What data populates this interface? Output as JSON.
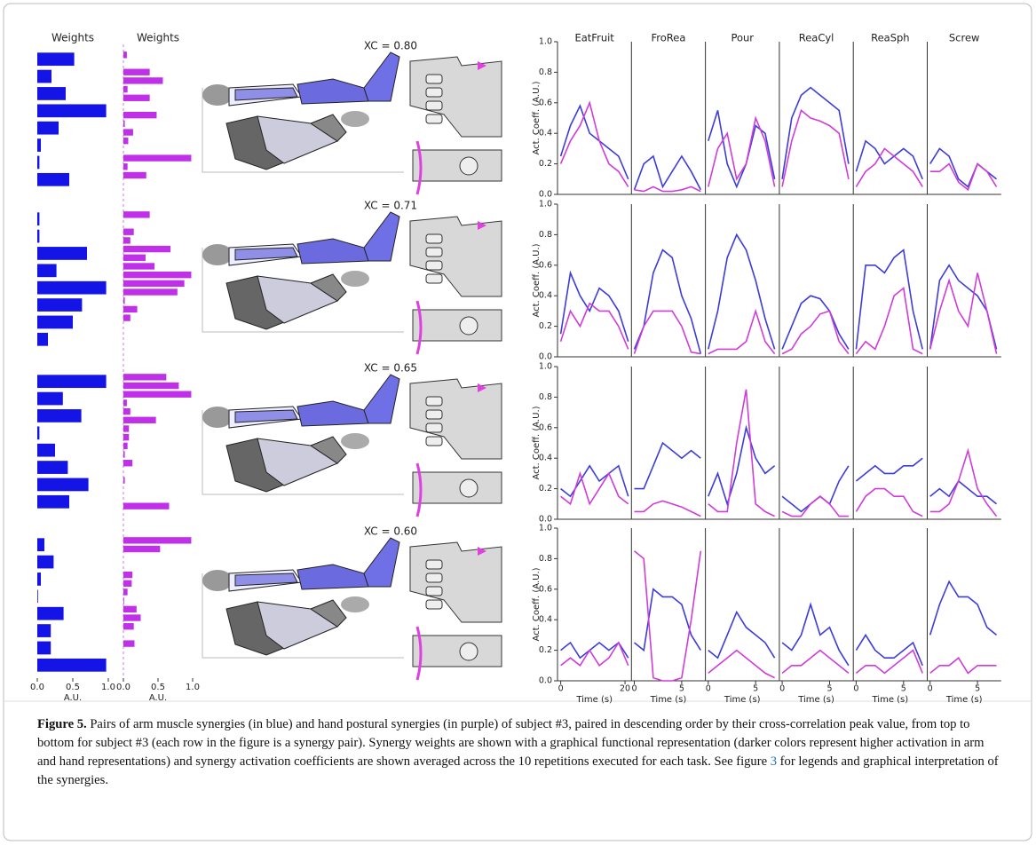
{
  "chart_data": [
    {
      "type": "bar",
      "orientation": "horizontal",
      "title": "Weights",
      "xlabel": "A.U.",
      "color": "#1414e6",
      "xlim": [
        0,
        1
      ],
      "xticks": [
        {
          "value": 0,
          "label": "0.0"
        },
        {
          "value": 0.5,
          "label": "0.5"
        },
        {
          "value": 1,
          "label": "1.0"
        }
      ],
      "rows": [
        [
          0.52,
          0.2,
          0.4,
          0.97,
          0.3,
          0.05,
          0.03,
          0.45
        ],
        [
          0.03,
          0.03,
          0.7,
          0.27,
          0.97,
          0.63,
          0.5,
          0.15
        ],
        [
          0.97,
          0.36,
          0.62,
          0.03,
          0.25,
          0.43,
          0.72,
          0.45
        ],
        [
          0.1,
          0.23,
          0.05,
          0.01,
          0.37,
          0.19,
          0.19,
          0.97
        ]
      ]
    },
    {
      "type": "bar",
      "orientation": "horizontal",
      "title": "Weights",
      "xlabel": "A.U.",
      "color": "#c030e8",
      "xlim": [
        0,
        1
      ],
      "xticks": [
        {
          "value": 0,
          "label": "0.0"
        },
        {
          "value": 0.5,
          "label": "0.5"
        },
        {
          "value": 1,
          "label": "1.0"
        }
      ],
      "rows": [
        [
          0.05,
          0.0,
          0.38,
          0.57,
          0.06,
          0.38,
          0.0,
          0.48,
          0.02,
          0.14,
          0.07,
          0.0,
          0.98,
          0.06,
          0.33,
          0.0
        ],
        [
          0.38,
          0.0,
          0.15,
          0.1,
          0.68,
          0.32,
          0.45,
          0.98,
          0.88,
          0.78,
          0.02,
          0.2,
          0.1,
          0.0,
          0.0,
          0.0
        ],
        [
          0.62,
          0.8,
          0.98,
          0.05,
          0.1,
          0.47,
          0.08,
          0.08,
          0.06,
          0.02,
          0.13,
          0.0,
          0.02,
          0.0,
          0.0,
          0.66
        ],
        [
          0.98,
          0.53,
          0.0,
          0.0,
          0.13,
          0.12,
          0.06,
          0.01,
          0.19,
          0.25,
          0.15,
          0.0,
          0.16,
          0.0,
          0.0,
          0.0
        ]
      ]
    },
    {
      "type": "line",
      "ylabel": "Act. Coeff. (A.U.)",
      "xlabel": "Time (s)",
      "ylim": [
        0,
        1
      ],
      "yticks": [
        {
          "value": 0,
          "label": "0.0"
        },
        {
          "value": 0.2,
          "label": "0.2"
        },
        {
          "value": 0.4,
          "label": "0.4"
        },
        {
          "value": 0.6,
          "label": "0.6"
        },
        {
          "value": 0.8,
          "label": "0.8"
        },
        {
          "value": 1,
          "label": "1.0"
        }
      ],
      "colors": [
        "#3c3cdc",
        "#d03cd8"
      ],
      "tasks": [
        {
          "name": "EatFruit",
          "xlim": [
            -1,
            22
          ],
          "xticks": [
            0,
            20
          ],
          "x": [
            0,
            3,
            6,
            9,
            12,
            15,
            18,
            21
          ],
          "rows": [
            [
              [
                0.25,
                0.45,
                0.58,
                0.4,
                0.35,
                0.3,
                0.25,
                0.1
              ],
              [
                0.2,
                0.35,
                0.45,
                0.6,
                0.35,
                0.2,
                0.15,
                0.05
              ]
            ],
            [
              [
                0.15,
                0.55,
                0.4,
                0.3,
                0.45,
                0.4,
                0.3,
                0.1
              ],
              [
                0.1,
                0.3,
                0.2,
                0.35,
                0.3,
                0.3,
                0.2,
                0.05
              ]
            ],
            [
              [
                0.2,
                0.15,
                0.25,
                0.35,
                0.25,
                0.3,
                0.35,
                0.15
              ],
              [
                0.15,
                0.1,
                0.3,
                0.1,
                0.2,
                0.3,
                0.15,
                0.1
              ]
            ],
            [
              [
                0.2,
                0.25,
                0.15,
                0.2,
                0.25,
                0.2,
                0.25,
                0.15
              ],
              [
                0.1,
                0.15,
                0.1,
                0.2,
                0.1,
                0.15,
                0.25,
                0.1
              ]
            ]
          ]
        },
        {
          "name": "FroRea",
          "xlim": [
            -0.3,
            7.5
          ],
          "xticks": [
            0,
            5
          ],
          "x": [
            0,
            1,
            2,
            3,
            4,
            5,
            6,
            7
          ],
          "rows": [
            [
              [
                0.03,
                0.2,
                0.25,
                0.05,
                0.15,
                0.25,
                0.15,
                0.03
              ],
              [
                0.03,
                0.02,
                0.05,
                0.02,
                0.02,
                0.03,
                0.05,
                0.02
              ]
            ],
            [
              [
                0.05,
                0.2,
                0.55,
                0.7,
                0.65,
                0.4,
                0.25,
                0.02
              ],
              [
                0.02,
                0.2,
                0.3,
                0.3,
                0.3,
                0.2,
                0.03,
                0.02
              ]
            ],
            [
              [
                0.2,
                0.2,
                0.35,
                0.5,
                0.45,
                0.4,
                0.45,
                0.4
              ],
              [
                0.05,
                0.05,
                0.1,
                0.12,
                0.1,
                0.08,
                0.05,
                0.02
              ]
            ],
            [
              [
                0.25,
                0.2,
                0.6,
                0.55,
                0.55,
                0.5,
                0.3,
                0.2
              ],
              [
                0.85,
                0.8,
                0.02,
                0.0,
                0.0,
                0.02,
                0.4,
                0.85
              ]
            ]
          ]
        },
        {
          "name": "Pour",
          "xlim": [
            -0.3,
            7.5
          ],
          "xticks": [
            0,
            5
          ],
          "x": [
            0,
            1,
            2,
            3,
            4,
            5,
            6,
            7
          ],
          "rows": [
            [
              [
                0.35,
                0.55,
                0.2,
                0.05,
                0.2,
                0.45,
                0.4,
                0.1
              ],
              [
                0.05,
                0.3,
                0.4,
                0.1,
                0.2,
                0.5,
                0.35,
                0.05
              ]
            ],
            [
              [
                0.05,
                0.3,
                0.65,
                0.8,
                0.7,
                0.5,
                0.25,
                0.05
              ],
              [
                0.02,
                0.05,
                0.05,
                0.05,
                0.1,
                0.3,
                0.1,
                0.02
              ]
            ],
            [
              [
                0.15,
                0.3,
                0.1,
                0.3,
                0.6,
                0.4,
                0.3,
                0.35
              ],
              [
                0.1,
                0.05,
                0.05,
                0.5,
                0.85,
                0.1,
                0.05,
                0.02
              ]
            ],
            [
              [
                0.2,
                0.15,
                0.3,
                0.45,
                0.35,
                0.3,
                0.25,
                0.15
              ],
              [
                0.05,
                0.1,
                0.15,
                0.2,
                0.15,
                0.1,
                0.05,
                0.02
              ]
            ]
          ]
        },
        {
          "name": "ReaCyl",
          "xlim": [
            -0.3,
            7.5
          ],
          "xticks": [
            0,
            5
          ],
          "x": [
            0,
            1,
            2,
            3,
            4,
            5,
            6,
            7
          ],
          "rows": [
            [
              [
                0.1,
                0.5,
                0.65,
                0.7,
                0.65,
                0.6,
                0.55,
                0.2
              ],
              [
                0.05,
                0.35,
                0.55,
                0.5,
                0.48,
                0.45,
                0.4,
                0.1
              ]
            ],
            [
              [
                0.05,
                0.2,
                0.35,
                0.4,
                0.38,
                0.3,
                0.15,
                0.05
              ],
              [
                0.02,
                0.05,
                0.15,
                0.2,
                0.28,
                0.3,
                0.1,
                0.02
              ]
            ],
            [
              [
                0.15,
                0.1,
                0.05,
                0.1,
                0.15,
                0.1,
                0.25,
                0.35
              ],
              [
                0.05,
                0.02,
                0.02,
                0.1,
                0.15,
                0.1,
                0.02,
                0.02
              ]
            ],
            [
              [
                0.25,
                0.2,
                0.3,
                0.5,
                0.3,
                0.35,
                0.2,
                0.1
              ],
              [
                0.05,
                0.1,
                0.1,
                0.15,
                0.2,
                0.15,
                0.1,
                0.05
              ]
            ]
          ]
        },
        {
          "name": "ReaSph",
          "xlim": [
            -0.3,
            7.5
          ],
          "xticks": [
            0,
            5
          ],
          "x": [
            0,
            1,
            2,
            3,
            4,
            5,
            6,
            7
          ],
          "rows": [
            [
              [
                0.15,
                0.35,
                0.3,
                0.2,
                0.25,
                0.3,
                0.25,
                0.1
              ],
              [
                0.05,
                0.15,
                0.2,
                0.3,
                0.25,
                0.2,
                0.15,
                0.05
              ]
            ],
            [
              [
                0.05,
                0.6,
                0.6,
                0.55,
                0.65,
                0.7,
                0.3,
                0.05
              ],
              [
                0.02,
                0.1,
                0.05,
                0.2,
                0.4,
                0.45,
                0.05,
                0.02
              ]
            ],
            [
              [
                0.25,
                0.3,
                0.35,
                0.3,
                0.3,
                0.35,
                0.35,
                0.4
              ],
              [
                0.05,
                0.15,
                0.2,
                0.2,
                0.15,
                0.15,
                0.05,
                0.02
              ]
            ],
            [
              [
                0.2,
                0.3,
                0.2,
                0.15,
                0.15,
                0.2,
                0.25,
                0.1
              ],
              [
                0.05,
                0.1,
                0.1,
                0.05,
                0.1,
                0.15,
                0.2,
                0.05
              ]
            ]
          ]
        },
        {
          "name": "Screw",
          "xlim": [
            -0.3,
            7.5
          ],
          "xticks": [
            0,
            5
          ],
          "x": [
            0,
            1,
            2,
            3,
            4,
            5,
            6,
            7
          ],
          "rows": [
            [
              [
                0.2,
                0.3,
                0.25,
                0.1,
                0.05,
                0.2,
                0.15,
                0.1
              ],
              [
                0.15,
                0.15,
                0.2,
                0.08,
                0.03,
                0.2,
                0.15,
                0.05
              ]
            ],
            [
              [
                0.05,
                0.5,
                0.6,
                0.5,
                0.45,
                0.4,
                0.3,
                0.05
              ],
              [
                0.05,
                0.3,
                0.5,
                0.3,
                0.2,
                0.55,
                0.3,
                0.02
              ]
            ],
            [
              [
                0.15,
                0.2,
                0.15,
                0.25,
                0.2,
                0.15,
                0.15,
                0.1
              ],
              [
                0.05,
                0.05,
                0.1,
                0.25,
                0.45,
                0.2,
                0.1,
                0.02
              ]
            ],
            [
              [
                0.3,
                0.5,
                0.65,
                0.55,
                0.55,
                0.5,
                0.35,
                0.3
              ],
              [
                0.05,
                0.1,
                0.1,
                0.15,
                0.05,
                0.1,
                0.1,
                0.1
              ]
            ]
          ]
        }
      ]
    }
  ],
  "synergy_pairs": [
    {
      "xc": "XC = 0.80"
    },
    {
      "xc": "XC = 0.71"
    },
    {
      "xc": "XC = 0.65"
    },
    {
      "xc": "XC = 0.60"
    }
  ],
  "caption": {
    "label": "Figure 5.",
    "text": " Pairs of arm muscle synergies (in blue) and hand postural synergies (in purple) of subject #3, paired in descending order by their cross-correlation peak value, from top to bottom for subject #3 (each row in the figure is a synergy pair). Synergy weights are shown with a graphical functional representation (darker colors represent higher activation in arm and hand representations) and synergy activation coefficients are shown averaged across the 10 repetitions executed for each task. See figure ",
    "ref": "3",
    "text_after": " for legends and graphical interpretation of the synergies."
  }
}
